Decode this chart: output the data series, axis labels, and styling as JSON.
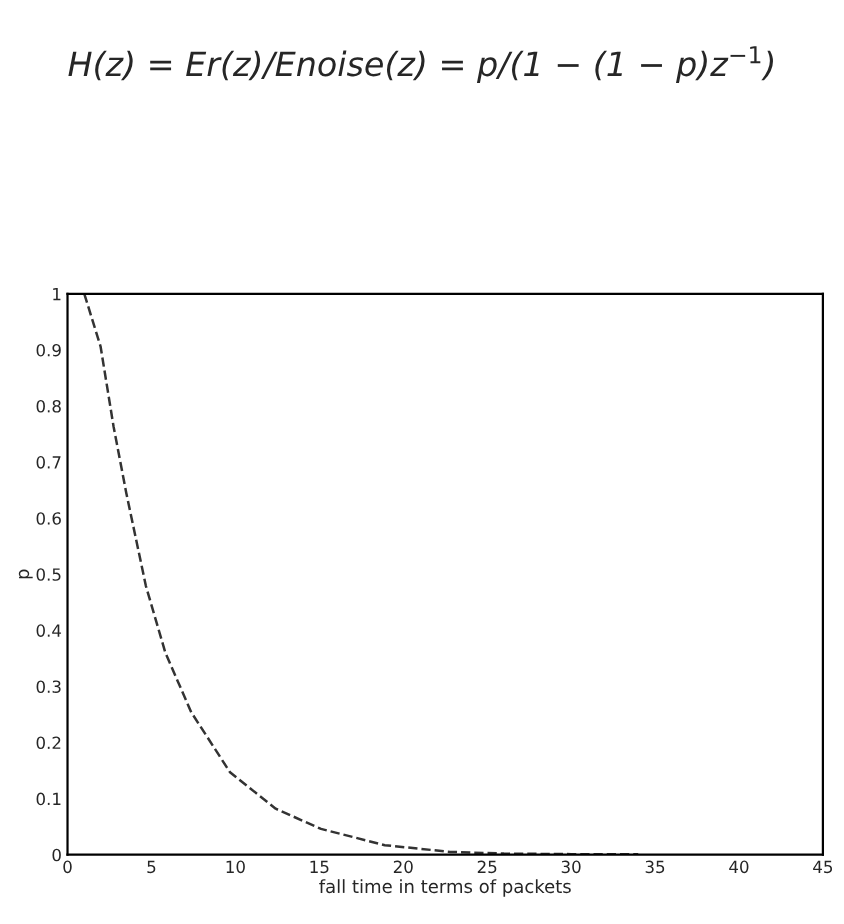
{
  "chart_data": {
    "type": "line",
    "title": "H(z) = Er(z)/Enoise(z) = p/(1 − (1 − p)z$^{−1}$)",
    "xlabel": "fall time in terms of packets",
    "ylabel": "p",
    "series": [
      {
        "color": "#333333",
        "x": [
          1,
          1.97,
          2.74,
          3.5,
          4.67,
          5.83,
          7.37,
          9.68,
          12.4,
          15.1,
          18.9,
          22.8,
          26,
          30,
          34
        ],
        "values": [
          1,
          0.906,
          0.764,
          0.645,
          0.479,
          0.36,
          0.254,
          0.147,
          0.082,
          0.046,
          0.017,
          0.005,
          0.002,
          0.001,
          0.001
        ]
      }
    ],
    "xlim": [
      0,
      45
    ],
    "ylim": [
      0,
      1
    ],
    "xticks": [
      0,
      5,
      10,
      15,
      20,
      25,
      30,
      35,
      40,
      45
    ],
    "yticks": [
      0,
      0.1,
      0.2,
      0.3,
      0.4,
      0.5,
      0.6,
      0.7,
      0.8,
      0.9,
      1
    ],
    "grid": false,
    "line_style": "dashed",
    "marker": "none"
  }
}
